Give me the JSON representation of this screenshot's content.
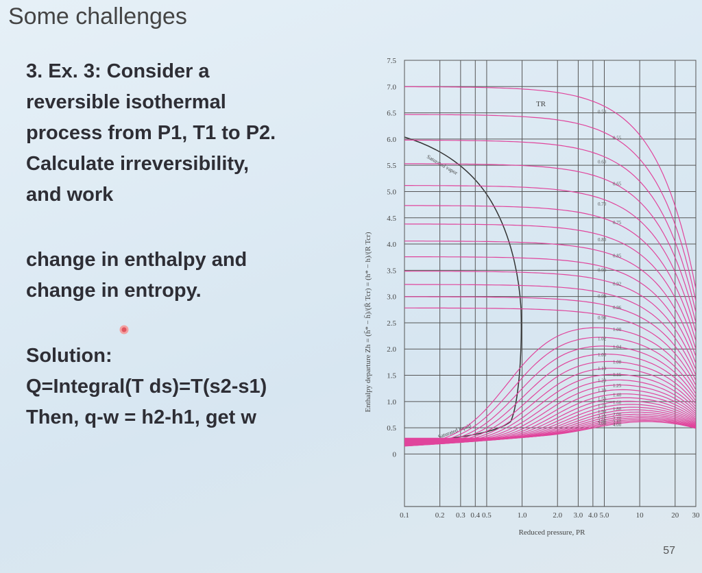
{
  "slide": {
    "title": "Some challenges",
    "problem": [
      "3. Ex. 3: Consider a",
      "reversible isothermal",
      "process from P1, T1 to P2.",
      "Calculate irreversibility,",
      "and work"
    ],
    "problem_cont": [
      "change in enthalpy and",
      "change in entropy."
    ],
    "solution": [
      "Solution:",
      "Q=Integral(T ds)=T(s2-s1)",
      "Then, q-w = h2-h1, get w"
    ],
    "page_number": "57"
  },
  "chart_data": {
    "type": "line",
    "xscale": "log",
    "grid": true,
    "xlabel": "Reduced pressure, PR",
    "ylabel": "Enthalpy departure Zh = (h̄* − h̄)/(R̄ Tcr) = (h* − h)/(R Tcr)",
    "xlim": [
      0.1,
      30
    ],
    "ylim": [
      -1,
      7.5
    ],
    "xticks": [
      0.1,
      0.2,
      0.3,
      0.4,
      0.5,
      {
        "value": 1,
        "label": "1.0"
      },
      {
        "value": 2,
        "label": "2.0"
      },
      {
        "value": 3,
        "label": "3.0"
      },
      {
        "value": 4,
        "label": "4.0"
      },
      {
        "value": 5,
        "label": "5.0"
      },
      10,
      20,
      30
    ],
    "yticks": [
      0,
      0.5,
      {
        "value": 1,
        "label": "1.0"
      },
      1.5,
      {
        "value": 2,
        "label": "2.0"
      },
      2.5,
      {
        "value": 3,
        "label": "3.0"
      },
      3.5,
      {
        "value": 4,
        "label": "4.0"
      },
      4.5,
      {
        "value": 5,
        "label": "5.0"
      },
      5.5,
      {
        "value": 6,
        "label": "6.0"
      },
      6.5,
      {
        "value": 7,
        "label": "7.0"
      },
      7.5
    ],
    "curve_color": "#e0449c",
    "tr_label": "TR",
    "dome_labels": [
      "Saturated liquid",
      "Saturated vapor"
    ],
    "isotherm_labels": [
      "0.50",
      "0.55",
      "0.60",
      "0.65",
      "0.70",
      "0.75",
      "0.80",
      "0.85",
      "0.90",
      "0.92",
      "0.94",
      "0.96",
      "0.98",
      "1.00",
      "1.02",
      "1.04",
      "1.06",
      "1.08",
      "1.10",
      "1.15",
      "1.20",
      "1.25",
      "1.30",
      "1.40",
      "1.50",
      "1.60",
      "1.70",
      "1.80",
      "1.90",
      "2.00",
      "2.20",
      "2.40",
      "2.60",
      "2.80",
      "3.00",
      "4.00"
    ]
  }
}
